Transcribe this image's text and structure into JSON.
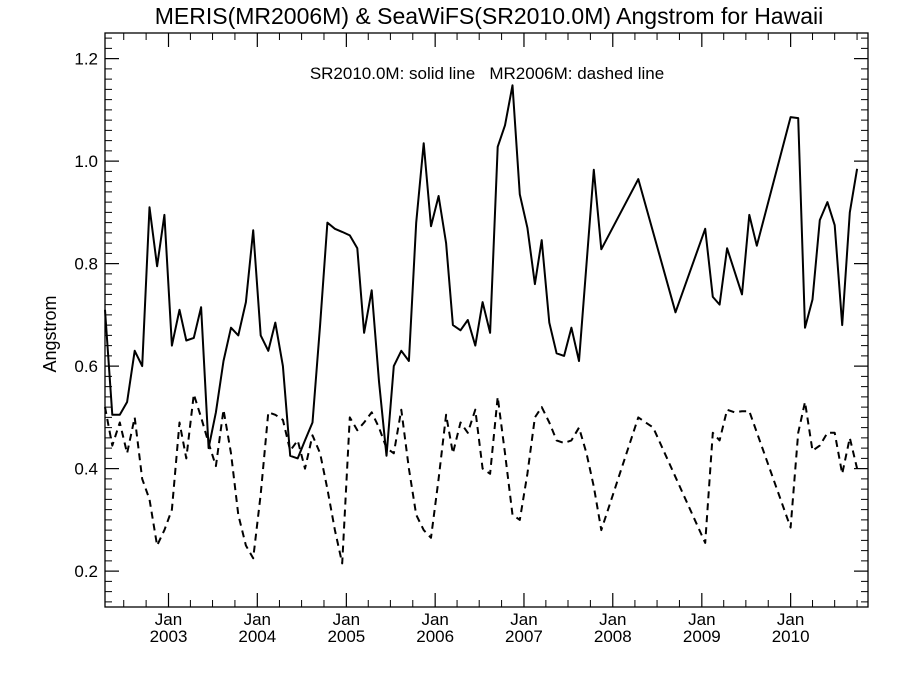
{
  "chart_data": {
    "type": "line",
    "title": "MERIS(MR2006M) & SeaWiFS(SR2010.0M)  Angstrom for Hawaii",
    "annotation": "SR2010.0M: solid line   MR2006M: dashed line",
    "ylabel": "Angstrom",
    "xlabel": "",
    "xlim": [
      "2002-04-15",
      "2010-11-15"
    ],
    "ylim": [
      0.13,
      1.25
    ],
    "yticks": [
      0.2,
      0.4,
      0.6,
      0.8,
      1.0,
      1.2
    ],
    "ytick_labels": [
      "0.2",
      "0.4",
      "0.6",
      "0.8",
      "1.0",
      "1.2"
    ],
    "xticks": [
      {
        "date": "2003-01-01",
        "month": "Jan",
        "year": "2003"
      },
      {
        "date": "2004-01-01",
        "month": "Jan",
        "year": "2004"
      },
      {
        "date": "2005-01-01",
        "month": "Jan",
        "year": "2005"
      },
      {
        "date": "2006-01-01",
        "month": "Jan",
        "year": "2006"
      },
      {
        "date": "2007-01-01",
        "month": "Jan",
        "year": "2007"
      },
      {
        "date": "2008-01-01",
        "month": "Jan",
        "year": "2008"
      },
      {
        "date": "2009-01-01",
        "month": "Jan",
        "year": "2009"
      },
      {
        "date": "2010-01-01",
        "month": "Jan",
        "year": "2010"
      }
    ],
    "grid": false,
    "series": [
      {
        "name": "SR2010.0M",
        "style": "solid",
        "color": "#000000",
        "points": [
          [
            "2002-04-15",
            0.71
          ],
          [
            "2002-05-15",
            0.505
          ],
          [
            "2002-06-15",
            0.505
          ],
          [
            "2002-07-15",
            0.53
          ],
          [
            "2002-08-15",
            0.63
          ],
          [
            "2002-09-15",
            0.6
          ],
          [
            "2002-10-15",
            0.91
          ],
          [
            "2002-11-15",
            0.795
          ],
          [
            "2002-12-15",
            0.895
          ],
          [
            "2003-01-15",
            0.64
          ],
          [
            "2003-02-15",
            0.71
          ],
          [
            "2003-03-15",
            0.65
          ],
          [
            "2003-04-15",
            0.655
          ],
          [
            "2003-05-15",
            0.715
          ],
          [
            "2003-06-15",
            0.44
          ],
          [
            "2003-07-15",
            0.51
          ],
          [
            "2003-08-15",
            0.61
          ],
          [
            "2003-09-15",
            0.675
          ],
          [
            "2003-10-15",
            0.66
          ],
          [
            "2003-11-15",
            0.725
          ],
          [
            "2003-12-15",
            0.865
          ],
          [
            "2004-01-15",
            0.66
          ],
          [
            "2004-02-15",
            0.63
          ],
          [
            "2004-03-15",
            0.685
          ],
          [
            "2004-04-15",
            0.6
          ],
          [
            "2004-05-15",
            0.425
          ],
          [
            "2004-06-15",
            0.42
          ],
          [
            "2004-07-15",
            0.455
          ],
          [
            "2004-08-15",
            0.49
          ],
          [
            "2004-09-15",
            0.68
          ],
          [
            "2004-10-15",
            0.88
          ],
          [
            "2004-11-15",
            0.868
          ],
          [
            "2004-12-15",
            0.862
          ],
          [
            "2005-01-15",
            0.855
          ],
          [
            "2005-02-15",
            0.83
          ],
          [
            "2005-03-15",
            0.665
          ],
          [
            "2005-04-15",
            0.748
          ],
          [
            "2005-05-15",
            0.57
          ],
          [
            "2005-06-15",
            0.425
          ],
          [
            "2005-07-15",
            0.6
          ],
          [
            "2005-08-15",
            0.63
          ],
          [
            "2005-09-15",
            0.61
          ],
          [
            "2005-10-15",
            0.88
          ],
          [
            "2005-11-15",
            1.035
          ],
          [
            "2005-12-15",
            0.873
          ],
          [
            "2006-01-15",
            0.932
          ],
          [
            "2006-02-15",
            0.84
          ],
          [
            "2006-03-15",
            0.68
          ],
          [
            "2006-04-15",
            0.67
          ],
          [
            "2006-05-15",
            0.69
          ],
          [
            "2006-06-15",
            0.64
          ],
          [
            "2006-07-15",
            0.725
          ],
          [
            "2006-08-15",
            0.665
          ],
          [
            "2006-09-15",
            1.028
          ],
          [
            "2006-10-15",
            1.07
          ],
          [
            "2006-11-15",
            1.148
          ],
          [
            "2006-12-15",
            0.935
          ],
          [
            "2007-01-15",
            0.87
          ],
          [
            "2007-02-15",
            0.76
          ],
          [
            "2007-03-15",
            0.846
          ],
          [
            "2007-04-15",
            0.685
          ],
          [
            "2007-05-15",
            0.625
          ],
          [
            "2007-06-15",
            0.62
          ],
          [
            "2007-07-15",
            0.675
          ],
          [
            "2007-08-15",
            0.61
          ],
          [
            "2007-10-15",
            0.983
          ],
          [
            "2007-11-15",
            0.828
          ],
          [
            "2008-04-15",
            0.965
          ],
          [
            "2008-09-15",
            0.705
          ],
          [
            "2009-01-15",
            0.868
          ],
          [
            "2009-02-15",
            0.735
          ],
          [
            "2009-03-15",
            0.72
          ],
          [
            "2009-04-15",
            0.83
          ],
          [
            "2009-06-15",
            0.74
          ],
          [
            "2009-07-15",
            0.895
          ],
          [
            "2009-08-15",
            0.835
          ],
          [
            "2010-01-01",
            1.086
          ],
          [
            "2010-02-01",
            1.084
          ],
          [
            "2010-03-01",
            0.675
          ],
          [
            "2010-04-01",
            0.73
          ],
          [
            "2010-05-01",
            0.885
          ],
          [
            "2010-06-01",
            0.92
          ],
          [
            "2010-07-01",
            0.875
          ],
          [
            "2010-08-01",
            0.68
          ],
          [
            "2010-09-01",
            0.9
          ],
          [
            "2010-10-01",
            0.985
          ]
        ]
      },
      {
        "name": "MR2006M",
        "style": "dashed",
        "color": "#000000",
        "points": [
          [
            "2002-04-15",
            0.52
          ],
          [
            "2002-05-15",
            0.445
          ],
          [
            "2002-06-15",
            0.49
          ],
          [
            "2002-07-15",
            0.43
          ],
          [
            "2002-08-15",
            0.5
          ],
          [
            "2002-09-15",
            0.38
          ],
          [
            "2002-10-15",
            0.34
          ],
          [
            "2002-11-15",
            0.25
          ],
          [
            "2002-12-15",
            0.28
          ],
          [
            "2003-01-15",
            0.32
          ],
          [
            "2003-02-15",
            0.49
          ],
          [
            "2003-03-15",
            0.42
          ],
          [
            "2003-04-15",
            0.545
          ],
          [
            "2003-05-15",
            0.5
          ],
          [
            "2003-06-15",
            0.45
          ],
          [
            "2003-07-15",
            0.405
          ],
          [
            "2003-08-15",
            0.515
          ],
          [
            "2003-09-15",
            0.43
          ],
          [
            "2003-10-15",
            0.31
          ],
          [
            "2003-11-15",
            0.25
          ],
          [
            "2003-12-15",
            0.225
          ],
          [
            "2004-01-15",
            0.35
          ],
          [
            "2004-02-15",
            0.51
          ],
          [
            "2004-03-15",
            0.505
          ],
          [
            "2004-04-15",
            0.495
          ],
          [
            "2004-05-15",
            0.435
          ],
          [
            "2004-06-15",
            0.455
          ],
          [
            "2004-07-15",
            0.4
          ],
          [
            "2004-08-15",
            0.465
          ],
          [
            "2004-09-15",
            0.43
          ],
          [
            "2004-10-15",
            0.36
          ],
          [
            "2004-11-15",
            0.28
          ],
          [
            "2004-12-15",
            0.215
          ],
          [
            "2005-01-15",
            0.5
          ],
          [
            "2005-02-15",
            0.475
          ],
          [
            "2005-03-15",
            0.49
          ],
          [
            "2005-04-15",
            0.51
          ],
          [
            "2005-05-15",
            0.48
          ],
          [
            "2005-06-15",
            0.44
          ],
          [
            "2005-07-15",
            0.43
          ],
          [
            "2005-08-15",
            0.515
          ],
          [
            "2005-09-15",
            0.4
          ],
          [
            "2005-10-15",
            0.31
          ],
          [
            "2005-11-15",
            0.28
          ],
          [
            "2005-12-15",
            0.265
          ],
          [
            "2006-01-15",
            0.38
          ],
          [
            "2006-02-15",
            0.505
          ],
          [
            "2006-03-15",
            0.43
          ],
          [
            "2006-04-15",
            0.49
          ],
          [
            "2006-05-15",
            0.47
          ],
          [
            "2006-06-15",
            0.515
          ],
          [
            "2006-07-15",
            0.4
          ],
          [
            "2006-08-15",
            0.39
          ],
          [
            "2006-09-15",
            0.54
          ],
          [
            "2006-10-15",
            0.43
          ],
          [
            "2006-11-15",
            0.31
          ],
          [
            "2006-12-15",
            0.3
          ],
          [
            "2007-01-15",
            0.39
          ],
          [
            "2007-02-15",
            0.5
          ],
          [
            "2007-03-15",
            0.52
          ],
          [
            "2007-04-15",
            0.49
          ],
          [
            "2007-05-15",
            0.455
          ],
          [
            "2007-06-15",
            0.45
          ],
          [
            "2007-07-15",
            0.455
          ],
          [
            "2007-08-15",
            0.48
          ],
          [
            "2007-09-15",
            0.43
          ],
          [
            "2007-10-15",
            0.365
          ],
          [
            "2007-11-15",
            0.28
          ],
          [
            "2008-04-15",
            0.5
          ],
          [
            "2008-06-15",
            0.48
          ],
          [
            "2009-01-15",
            0.255
          ],
          [
            "2009-02-15",
            0.47
          ],
          [
            "2009-03-15",
            0.455
          ],
          [
            "2009-04-15",
            0.515
          ],
          [
            "2009-05-15",
            0.51
          ],
          [
            "2009-06-15",
            0.512
          ],
          [
            "2009-07-15",
            0.512
          ],
          [
            "2010-01-01",
            0.285
          ],
          [
            "2010-02-01",
            0.47
          ],
          [
            "2010-03-01",
            0.53
          ],
          [
            "2010-04-01",
            0.435
          ],
          [
            "2010-05-01",
            0.445
          ],
          [
            "2010-06-01",
            0.47
          ],
          [
            "2010-07-01",
            0.47
          ],
          [
            "2010-08-01",
            0.39
          ],
          [
            "2010-09-01",
            0.46
          ],
          [
            "2010-10-01",
            0.4
          ]
        ]
      }
    ]
  }
}
